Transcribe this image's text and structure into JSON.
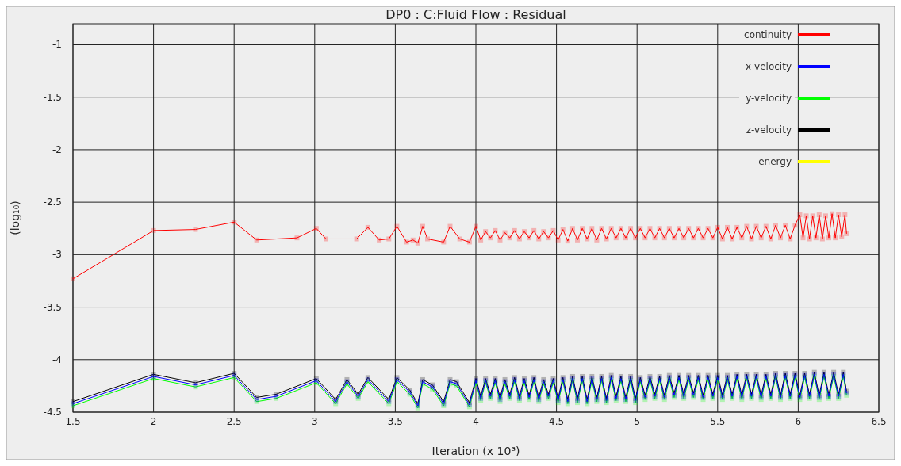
{
  "chart_data": {
    "type": "line",
    "title": "DP0 : C:Fluid Flow : Residual",
    "xlabel": "Iteration (x 10³)",
    "ylabel": "(log₁₀)",
    "xlim": [
      1.5,
      6.5
    ],
    "xticks": [
      1.5,
      2,
      2.5,
      3,
      3.5,
      4,
      4.5,
      5,
      5.5,
      6,
      6.5
    ],
    "ylim": [
      -4.5,
      -0.8
    ],
    "yticks": [
      -4.5,
      -4,
      -3.5,
      -3,
      -2.5,
      -2,
      -1.5,
      -1
    ],
    "grid": true,
    "legend": "top right",
    "marker": "square",
    "line_style": "solid",
    "series": [
      {
        "name": "continuity",
        "color": "#ff0000",
        "x": [
          1.5,
          2.0,
          2.26,
          2.5,
          2.64,
          2.89,
          3.01,
          3.07,
          3.26,
          3.33,
          3.4,
          3.46,
          3.51,
          3.57,
          3.61,
          3.64,
          3.67,
          3.7,
          3.8,
          3.84,
          3.9,
          3.96,
          4.0,
          4.03,
          4.06,
          4.09,
          4.12,
          4.15,
          4.18,
          4.21,
          4.24,
          4.27,
          4.3,
          4.33,
          4.36,
          4.39,
          4.42,
          4.45,
          4.48,
          4.51,
          4.54,
          4.57,
          4.6,
          4.63,
          4.66,
          4.69,
          4.72,
          4.75,
          4.78,
          4.81,
          4.84,
          4.87,
          4.9,
          4.93,
          4.96,
          4.99,
          5.02,
          5.05,
          5.08,
          5.11,
          5.14,
          5.17,
          5.2,
          5.23,
          5.26,
          5.29,
          5.32,
          5.35,
          5.38,
          5.41,
          5.44,
          5.47,
          5.5,
          5.53,
          5.56,
          5.59,
          5.62,
          5.65,
          5.68,
          5.71,
          5.74,
          5.77,
          5.8,
          5.83,
          5.86,
          5.89,
          5.92,
          5.95,
          5.98,
          6.01,
          6.03,
          6.05,
          6.07,
          6.09,
          6.11,
          6.13,
          6.15,
          6.17,
          6.19,
          6.21,
          6.23,
          6.25,
          6.27,
          6.29,
          6.3
        ],
        "values": [
          -3.23,
          -2.77,
          -2.76,
          -2.69,
          -2.86,
          -2.84,
          -2.75,
          -2.85,
          -2.85,
          -2.74,
          -2.86,
          -2.85,
          -2.73,
          -2.88,
          -2.86,
          -2.89,
          -2.73,
          -2.85,
          -2.88,
          -2.73,
          -2.85,
          -2.88,
          -2.73,
          -2.86,
          -2.78,
          -2.84,
          -2.77,
          -2.86,
          -2.79,
          -2.84,
          -2.77,
          -2.85,
          -2.78,
          -2.84,
          -2.77,
          -2.85,
          -2.78,
          -2.84,
          -2.77,
          -2.86,
          -2.76,
          -2.87,
          -2.75,
          -2.86,
          -2.75,
          -2.85,
          -2.75,
          -2.86,
          -2.75,
          -2.85,
          -2.75,
          -2.84,
          -2.75,
          -2.84,
          -2.75,
          -2.84,
          -2.75,
          -2.84,
          -2.75,
          -2.84,
          -2.75,
          -2.84,
          -2.75,
          -2.84,
          -2.75,
          -2.84,
          -2.75,
          -2.84,
          -2.75,
          -2.84,
          -2.75,
          -2.84,
          -2.74,
          -2.85,
          -2.74,
          -2.85,
          -2.74,
          -2.84,
          -2.73,
          -2.85,
          -2.73,
          -2.84,
          -2.73,
          -2.85,
          -2.72,
          -2.84,
          -2.72,
          -2.85,
          -2.72,
          -2.62,
          -2.84,
          -2.63,
          -2.85,
          -2.63,
          -2.84,
          -2.62,
          -2.85,
          -2.63,
          -2.84,
          -2.61,
          -2.84,
          -2.62,
          -2.83,
          -2.62,
          -2.8
        ]
      },
      {
        "name": "x-velocity",
        "color": "#0000ff",
        "x": [
          1.5,
          2.0,
          2.26,
          2.5,
          2.64,
          2.76,
          3.01,
          3.13,
          3.2,
          3.27,
          3.33,
          3.46,
          3.51,
          3.59,
          3.64,
          3.67,
          3.73,
          3.8,
          3.84,
          3.88,
          3.96,
          4.0,
          4.03,
          4.06,
          4.09,
          4.12,
          4.15,
          4.18,
          4.21,
          4.24,
          4.27,
          4.3,
          4.33,
          4.36,
          4.39,
          4.42,
          4.45,
          4.48,
          4.51,
          4.54,
          4.57,
          4.6,
          4.63,
          4.66,
          4.69,
          4.72,
          4.75,
          4.78,
          4.81,
          4.84,
          4.87,
          4.9,
          4.93,
          4.96,
          4.99,
          5.02,
          5.05,
          5.08,
          5.11,
          5.14,
          5.17,
          5.2,
          5.23,
          5.26,
          5.29,
          5.32,
          5.35,
          5.38,
          5.41,
          5.44,
          5.47,
          5.5,
          5.53,
          5.56,
          5.59,
          5.62,
          5.65,
          5.68,
          5.71,
          5.74,
          5.77,
          5.8,
          5.83,
          5.86,
          5.89,
          5.92,
          5.95,
          5.98,
          6.01,
          6.04,
          6.07,
          6.1,
          6.13,
          6.16,
          6.19,
          6.22,
          6.25,
          6.28,
          6.3
        ],
        "values": [
          -4.42,
          -4.16,
          -4.24,
          -4.15,
          -4.38,
          -4.35,
          -4.2,
          -4.4,
          -4.21,
          -4.35,
          -4.19,
          -4.4,
          -4.19,
          -4.31,
          -4.44,
          -4.21,
          -4.26,
          -4.42,
          -4.21,
          -4.23,
          -4.43,
          -4.2,
          -4.37,
          -4.2,
          -4.35,
          -4.2,
          -4.38,
          -4.21,
          -4.35,
          -4.19,
          -4.37,
          -4.2,
          -4.36,
          -4.19,
          -4.38,
          -4.21,
          -4.35,
          -4.2,
          -4.39,
          -4.19,
          -4.4,
          -4.18,
          -4.39,
          -4.18,
          -4.4,
          -4.18,
          -4.38,
          -4.18,
          -4.39,
          -4.17,
          -4.37,
          -4.18,
          -4.38,
          -4.18,
          -4.39,
          -4.19,
          -4.36,
          -4.18,
          -4.35,
          -4.18,
          -4.36,
          -4.17,
          -4.34,
          -4.17,
          -4.35,
          -4.17,
          -4.34,
          -4.17,
          -4.36,
          -4.17,
          -4.35,
          -4.17,
          -4.36,
          -4.17,
          -4.35,
          -4.16,
          -4.36,
          -4.16,
          -4.35,
          -4.16,
          -4.36,
          -4.16,
          -4.35,
          -4.15,
          -4.36,
          -4.15,
          -4.35,
          -4.15,
          -4.36,
          -4.15,
          -4.35,
          -4.14,
          -4.36,
          -4.14,
          -4.35,
          -4.14,
          -4.35,
          -4.14,
          -4.32
        ]
      },
      {
        "name": "y-velocity",
        "color": "#00ff00",
        "x": [
          1.5,
          2.0,
          2.26,
          2.5,
          2.64,
          2.76,
          3.01,
          3.13,
          3.2,
          3.27,
          3.33,
          3.46,
          3.51,
          3.59,
          3.64,
          3.67,
          3.73,
          3.8,
          3.84,
          3.88,
          3.96,
          4.0,
          4.03,
          4.06,
          4.09,
          4.12,
          4.15,
          4.18,
          4.21,
          4.24,
          4.27,
          4.3,
          4.33,
          4.36,
          4.39,
          4.42,
          4.45,
          4.48,
          4.51,
          4.54,
          4.57,
          4.6,
          4.63,
          4.66,
          4.69,
          4.72,
          4.75,
          4.78,
          4.81,
          4.84,
          4.87,
          4.9,
          4.93,
          4.96,
          4.99,
          5.02,
          5.05,
          5.08,
          5.11,
          5.14,
          5.17,
          5.2,
          5.23,
          5.26,
          5.29,
          5.32,
          5.35,
          5.38,
          5.41,
          5.44,
          5.47,
          5.5,
          5.53,
          5.56,
          5.59,
          5.62,
          5.65,
          5.68,
          5.71,
          5.74,
          5.77,
          5.8,
          5.83,
          5.86,
          5.89,
          5.92,
          5.95,
          5.98,
          6.01,
          6.04,
          6.07,
          6.1,
          6.13,
          6.16,
          6.19,
          6.22,
          6.25,
          6.28,
          6.3
        ],
        "values": [
          -4.44,
          -4.18,
          -4.26,
          -4.17,
          -4.4,
          -4.37,
          -4.22,
          -4.42,
          -4.23,
          -4.37,
          -4.21,
          -4.42,
          -4.21,
          -4.33,
          -4.46,
          -4.23,
          -4.28,
          -4.44,
          -4.23,
          -4.25,
          -4.45,
          -4.22,
          -4.39,
          -4.22,
          -4.37,
          -4.22,
          -4.4,
          -4.23,
          -4.37,
          -4.21,
          -4.39,
          -4.22,
          -4.38,
          -4.21,
          -4.4,
          -4.23,
          -4.37,
          -4.22,
          -4.41,
          -4.21,
          -4.42,
          -4.2,
          -4.41,
          -4.2,
          -4.42,
          -4.2,
          -4.4,
          -4.2,
          -4.41,
          -4.19,
          -4.39,
          -4.2,
          -4.4,
          -4.2,
          -4.41,
          -4.21,
          -4.38,
          -4.2,
          -4.37,
          -4.2,
          -4.38,
          -4.19,
          -4.36,
          -4.19,
          -4.37,
          -4.19,
          -4.36,
          -4.19,
          -4.38,
          -4.19,
          -4.37,
          -4.19,
          -4.38,
          -4.19,
          -4.37,
          -4.18,
          -4.38,
          -4.18,
          -4.37,
          -4.18,
          -4.38,
          -4.18,
          -4.37,
          -4.17,
          -4.38,
          -4.17,
          -4.37,
          -4.17,
          -4.38,
          -4.17,
          -4.37,
          -4.16,
          -4.38,
          -4.16,
          -4.37,
          -4.16,
          -4.37,
          -4.16,
          -4.34
        ]
      },
      {
        "name": "z-velocity",
        "color": "#000000",
        "x": [
          1.5,
          2.0,
          2.26,
          2.5,
          2.64,
          2.76,
          3.01,
          3.13,
          3.2,
          3.27,
          3.33,
          3.46,
          3.51,
          3.59,
          3.64,
          3.67,
          3.73,
          3.8,
          3.84,
          3.88,
          3.96,
          4.0,
          4.03,
          4.06,
          4.09,
          4.12,
          4.15,
          4.18,
          4.21,
          4.24,
          4.27,
          4.3,
          4.33,
          4.36,
          4.39,
          4.42,
          4.45,
          4.48,
          4.51,
          4.54,
          4.57,
          4.6,
          4.63,
          4.66,
          4.69,
          4.72,
          4.75,
          4.78,
          4.81,
          4.84,
          4.87,
          4.9,
          4.93,
          4.96,
          4.99,
          5.02,
          5.05,
          5.08,
          5.11,
          5.14,
          5.17,
          5.2,
          5.23,
          5.26,
          5.29,
          5.32,
          5.35,
          5.38,
          5.41,
          5.44,
          5.47,
          5.5,
          5.53,
          5.56,
          5.59,
          5.62,
          5.65,
          5.68,
          5.71,
          5.74,
          5.77,
          5.8,
          5.83,
          5.86,
          5.89,
          5.92,
          5.95,
          5.98,
          6.01,
          6.04,
          6.07,
          6.1,
          6.13,
          6.16,
          6.19,
          6.22,
          6.25,
          6.28,
          6.3
        ],
        "values": [
          -4.4,
          -4.14,
          -4.22,
          -4.13,
          -4.36,
          -4.33,
          -4.18,
          -4.38,
          -4.19,
          -4.33,
          -4.17,
          -4.38,
          -4.17,
          -4.29,
          -4.42,
          -4.19,
          -4.24,
          -4.4,
          -4.19,
          -4.21,
          -4.41,
          -4.18,
          -4.35,
          -4.18,
          -4.33,
          -4.18,
          -4.36,
          -4.19,
          -4.33,
          -4.17,
          -4.35,
          -4.18,
          -4.34,
          -4.17,
          -4.36,
          -4.19,
          -4.33,
          -4.18,
          -4.37,
          -4.17,
          -4.38,
          -4.16,
          -4.37,
          -4.16,
          -4.38,
          -4.16,
          -4.36,
          -4.16,
          -4.37,
          -4.15,
          -4.35,
          -4.16,
          -4.36,
          -4.16,
          -4.37,
          -4.17,
          -4.34,
          -4.16,
          -4.33,
          -4.16,
          -4.34,
          -4.15,
          -4.32,
          -4.15,
          -4.33,
          -4.15,
          -4.32,
          -4.15,
          -4.34,
          -4.15,
          -4.33,
          -4.15,
          -4.34,
          -4.15,
          -4.33,
          -4.14,
          -4.34,
          -4.14,
          -4.33,
          -4.14,
          -4.34,
          -4.14,
          -4.33,
          -4.13,
          -4.34,
          -4.13,
          -4.33,
          -4.13,
          -4.34,
          -4.13,
          -4.33,
          -4.12,
          -4.34,
          -4.12,
          -4.33,
          -4.12,
          -4.33,
          -4.12,
          -4.3
        ]
      },
      {
        "name": "energy",
        "color": "#ffff00"
      }
    ]
  }
}
